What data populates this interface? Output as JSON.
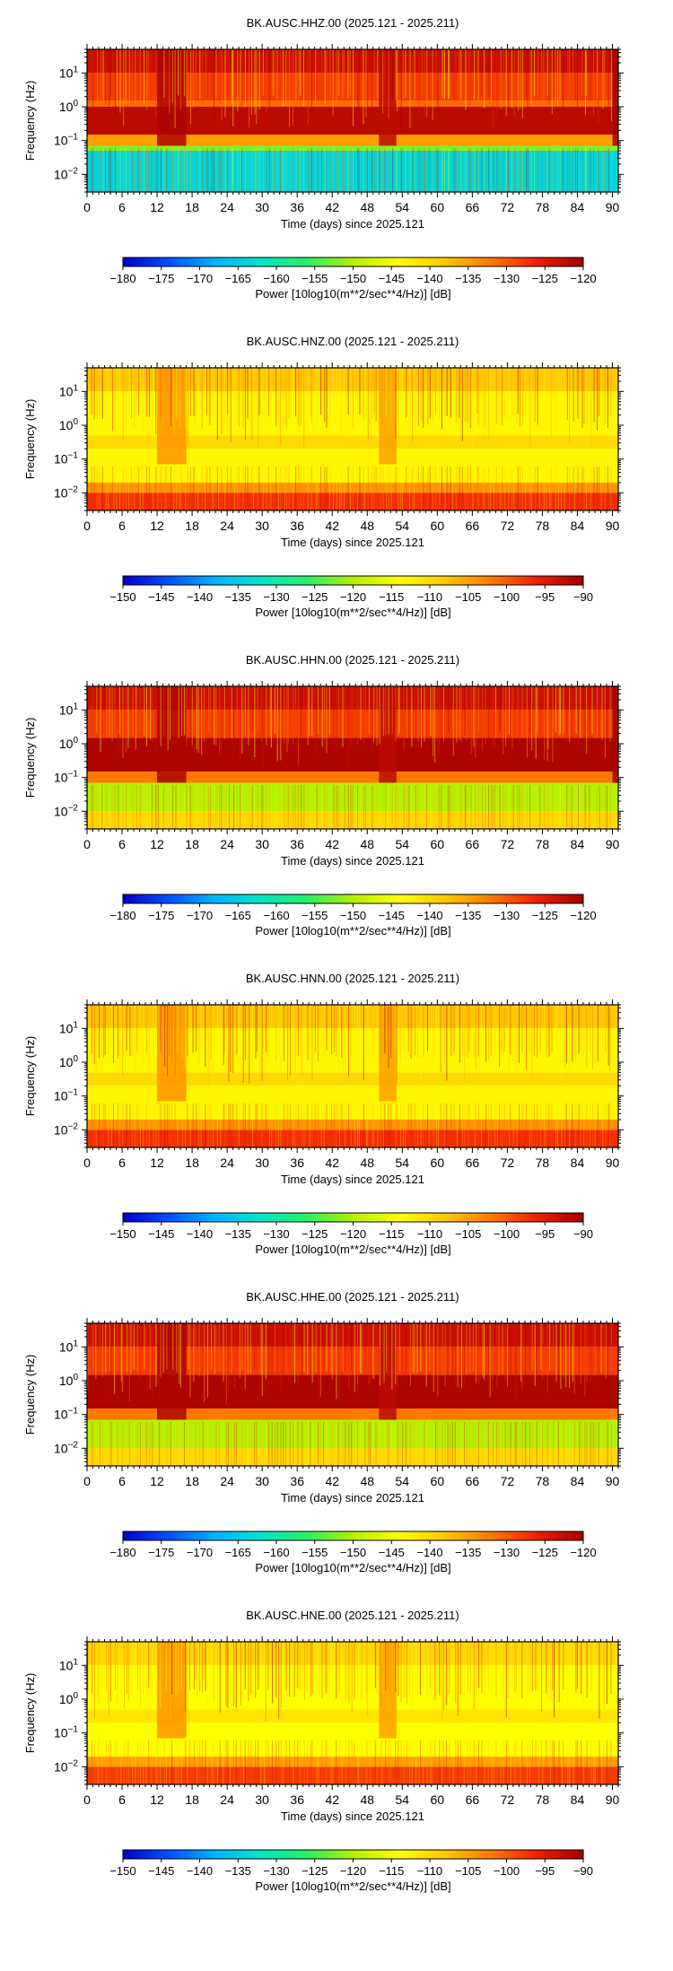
{
  "chart_data": [
    {
      "type": "heatmap",
      "title": "BK.AUSC.HHZ.00 (2025.121 - 2025.211)",
      "xlabel": "Time (days) since 2025.121",
      "ylabel": "Frequency (Hz)",
      "xlim": [
        0,
        91
      ],
      "ylim": [
        0.003,
        50
      ],
      "yscale": "log",
      "x_ticks": [
        "0",
        "6",
        "12",
        "18",
        "24",
        "30",
        "36",
        "42",
        "48",
        "54",
        "60",
        "66",
        "72",
        "78",
        "84",
        "90"
      ],
      "y_ticks": [
        "10^-2",
        "10^-1",
        "10^0",
        "10^1"
      ],
      "colorbar": {
        "label": "Power [10log10(m**2/sec**4/Hz)] [dB]",
        "range": [
          -180,
          -120
        ],
        "ticks": [
          "−180",
          "−175",
          "−170",
          "−165",
          "−160",
          "−155",
          "−150",
          "−145",
          "−140",
          "−135",
          "−130",
          "−125",
          "−120"
        ]
      },
      "colormap": [
        "#0000c8",
        "#0050ff",
        "#00b4ff",
        "#00e6c8",
        "#28f064",
        "#b4f000",
        "#ffff00",
        "#ffc800",
        "#ff7800",
        "#f01e00",
        "#a00000"
      ],
      "rows": [
        {
          "freq_hz": [
            10,
            50
          ],
          "power_db": -123
        },
        {
          "freq_hz": [
            1.5,
            10
          ],
          "power_db": -128
        },
        {
          "freq_hz": [
            1,
            1.5
          ],
          "power_db": -131
        },
        {
          "freq_hz": [
            0.15,
            1
          ],
          "power_db": -122
        },
        {
          "freq_hz": [
            0.07,
            0.15
          ],
          "power_db": -135
        },
        {
          "freq_hz": [
            0.05,
            0.07
          ],
          "power_db": -152
        },
        {
          "freq_hz": [
            0.003,
            0.05
          ],
          "power_db": -164
        }
      ],
      "bands": [
        {
          "days": [
            12,
            17
          ],
          "power_db": -121
        },
        {
          "days": [
            50,
            53
          ],
          "power_db": -122
        },
        {
          "days": [
            90,
            91
          ],
          "power_db": -120
        }
      ]
    },
    {
      "type": "heatmap",
      "title": "BK.AUSC.HNZ.00 (2025.121 - 2025.211)",
      "xlabel": "Time (days) since 2025.121",
      "ylabel": "Frequency (Hz)",
      "xlim": [
        0,
        91
      ],
      "ylim": [
        0.003,
        50
      ],
      "yscale": "log",
      "x_ticks": [
        "0",
        "6",
        "12",
        "18",
        "24",
        "30",
        "36",
        "42",
        "48",
        "54",
        "60",
        "66",
        "72",
        "78",
        "84",
        "90"
      ],
      "y_ticks": [
        "10^-2",
        "10^-1",
        "10^0",
        "10^1"
      ],
      "colorbar": {
        "label": "Power [10log10(m**2/sec**4/Hz)] [dB]",
        "range": [
          -150,
          -90
        ],
        "ticks": [
          "−150",
          "−145",
          "−140",
          "−135",
          "−130",
          "−125",
          "−120",
          "−115",
          "−110",
          "−105",
          "−100",
          "−95",
          "−90"
        ]
      },
      "colormap": [
        "#0000c8",
        "#0050ff",
        "#00b4ff",
        "#00e6c8",
        "#28f064",
        "#b4f000",
        "#ffff00",
        "#ffc800",
        "#ff7800",
        "#f01e00",
        "#a00000"
      ],
      "rows": [
        {
          "freq_hz": [
            10,
            50
          ],
          "power_db": -108
        },
        {
          "freq_hz": [
            0.5,
            10
          ],
          "power_db": -113
        },
        {
          "freq_hz": [
            0.2,
            0.5
          ],
          "power_db": -110
        },
        {
          "freq_hz": [
            0.02,
            0.2
          ],
          "power_db": -113
        },
        {
          "freq_hz": [
            0.01,
            0.02
          ],
          "power_db": -104
        },
        {
          "freq_hz": [
            0.003,
            0.01
          ],
          "power_db": -97
        }
      ],
      "bands": [
        {
          "days": [
            12,
            17
          ],
          "power_db": -104
        },
        {
          "days": [
            50,
            53
          ],
          "power_db": -105
        }
      ]
    },
    {
      "type": "heatmap",
      "title": "BK.AUSC.HHN.00 (2025.121 - 2025.211)",
      "xlabel": "Time (days) since 2025.121",
      "ylabel": "Frequency (Hz)",
      "xlim": [
        0,
        91
      ],
      "ylim": [
        0.003,
        50
      ],
      "yscale": "log",
      "x_ticks": [
        "0",
        "6",
        "12",
        "18",
        "24",
        "30",
        "36",
        "42",
        "48",
        "54",
        "60",
        "66",
        "72",
        "78",
        "84",
        "90"
      ],
      "y_ticks": [
        "10^-2",
        "10^-1",
        "10^0",
        "10^1"
      ],
      "colorbar": {
        "label": "Power [10log10(m**2/sec**4/Hz)] [dB]",
        "range": [
          -180,
          -120
        ],
        "ticks": [
          "−180",
          "−175",
          "−170",
          "−165",
          "−160",
          "−155",
          "−150",
          "−145",
          "−140",
          "−135",
          "−130",
          "−125",
          "−120"
        ]
      },
      "colormap": [
        "#0000c8",
        "#0050ff",
        "#00b4ff",
        "#00e6c8",
        "#28f064",
        "#b4f000",
        "#ffff00",
        "#ffc800",
        "#ff7800",
        "#f01e00",
        "#a00000"
      ],
      "rows": [
        {
          "freq_hz": [
            10,
            50
          ],
          "power_db": -123
        },
        {
          "freq_hz": [
            1.5,
            10
          ],
          "power_db": -128
        },
        {
          "freq_hz": [
            0.15,
            1.5
          ],
          "power_db": -121
        },
        {
          "freq_hz": [
            0.07,
            0.15
          ],
          "power_db": -132
        },
        {
          "freq_hz": [
            0.01,
            0.07
          ],
          "power_db": -150
        },
        {
          "freq_hz": [
            0.003,
            0.01
          ],
          "power_db": -140
        }
      ],
      "bands": [
        {
          "days": [
            12,
            17
          ],
          "power_db": -121
        },
        {
          "days": [
            50,
            53
          ],
          "power_db": -122
        },
        {
          "days": [
            90,
            91
          ],
          "power_db": -120
        }
      ]
    },
    {
      "type": "heatmap",
      "title": "BK.AUSC.HNN.00 (2025.121 - 2025.211)",
      "xlabel": "Time (days) since 2025.121",
      "ylabel": "Frequency (Hz)",
      "xlim": [
        0,
        91
      ],
      "ylim": [
        0.003,
        50
      ],
      "yscale": "log",
      "x_ticks": [
        "0",
        "6",
        "12",
        "18",
        "24",
        "30",
        "36",
        "42",
        "48",
        "54",
        "60",
        "66",
        "72",
        "78",
        "84",
        "90"
      ],
      "y_ticks": [
        "10^-2",
        "10^-1",
        "10^0",
        "10^1"
      ],
      "colorbar": {
        "label": "Power [10log10(m**2/sec**4/Hz)] [dB]",
        "range": [
          -150,
          -90
        ],
        "ticks": [
          "−150",
          "−145",
          "−140",
          "−135",
          "−130",
          "−125",
          "−120",
          "−115",
          "−110",
          "−105",
          "−100",
          "−95",
          "−90"
        ]
      },
      "colormap": [
        "#0000c8",
        "#0050ff",
        "#00b4ff",
        "#00e6c8",
        "#28f064",
        "#b4f000",
        "#ffff00",
        "#ffc800",
        "#ff7800",
        "#f01e00",
        "#a00000"
      ],
      "rows": [
        {
          "freq_hz": [
            10,
            50
          ],
          "power_db": -108
        },
        {
          "freq_hz": [
            0.5,
            10
          ],
          "power_db": -113
        },
        {
          "freq_hz": [
            0.2,
            0.5
          ],
          "power_db": -110
        },
        {
          "freq_hz": [
            0.02,
            0.2
          ],
          "power_db": -113
        },
        {
          "freq_hz": [
            0.01,
            0.02
          ],
          "power_db": -104
        },
        {
          "freq_hz": [
            0.003,
            0.01
          ],
          "power_db": -97
        }
      ],
      "bands": [
        {
          "days": [
            12,
            17
          ],
          "power_db": -104
        },
        {
          "days": [
            50,
            53
          ],
          "power_db": -105
        }
      ]
    },
    {
      "type": "heatmap",
      "title": "BK.AUSC.HHE.00 (2025.121 - 2025.211)",
      "xlabel": "Time (days) since 2025.121",
      "ylabel": "Frequency (Hz)",
      "xlim": [
        0,
        91
      ],
      "ylim": [
        0.003,
        50
      ],
      "yscale": "log",
      "x_ticks": [
        "0",
        "6",
        "12",
        "18",
        "24",
        "30",
        "36",
        "42",
        "48",
        "54",
        "60",
        "66",
        "72",
        "78",
        "84",
        "90"
      ],
      "y_ticks": [
        "10^-2",
        "10^-1",
        "10^0",
        "10^1"
      ],
      "colorbar": {
        "label": "Power [10log10(m**2/sec**4/Hz)] [dB]",
        "range": [
          -180,
          -120
        ],
        "ticks": [
          "−180",
          "−175",
          "−170",
          "−165",
          "−160",
          "−155",
          "−150",
          "−145",
          "−140",
          "−135",
          "−130",
          "−125",
          "−120"
        ]
      },
      "colormap": [
        "#0000c8",
        "#0050ff",
        "#00b4ff",
        "#00e6c8",
        "#28f064",
        "#b4f000",
        "#ffff00",
        "#ffc800",
        "#ff7800",
        "#f01e00",
        "#a00000"
      ],
      "rows": [
        {
          "freq_hz": [
            10,
            50
          ],
          "power_db": -123
        },
        {
          "freq_hz": [
            1.5,
            10
          ],
          "power_db": -128
        },
        {
          "freq_hz": [
            0.15,
            1.5
          ],
          "power_db": -121
        },
        {
          "freq_hz": [
            0.07,
            0.15
          ],
          "power_db": -132
        },
        {
          "freq_hz": [
            0.01,
            0.07
          ],
          "power_db": -150
        },
        {
          "freq_hz": [
            0.003,
            0.01
          ],
          "power_db": -140
        }
      ],
      "bands": [
        {
          "days": [
            12,
            17
          ],
          "power_db": -121
        },
        {
          "days": [
            50,
            53
          ],
          "power_db": -122
        }
      ]
    },
    {
      "type": "heatmap",
      "title": "BK.AUSC.HNE.00 (2025.121 - 2025.211)",
      "xlabel": "Time (days) since 2025.121",
      "ylabel": "Frequency (Hz)",
      "xlim": [
        0,
        91
      ],
      "ylim": [
        0.003,
        50
      ],
      "yscale": "log",
      "x_ticks": [
        "0",
        "6",
        "12",
        "18",
        "24",
        "30",
        "36",
        "42",
        "48",
        "54",
        "60",
        "66",
        "72",
        "78",
        "84",
        "90"
      ],
      "y_ticks": [
        "10^-2",
        "10^-1",
        "10^0",
        "10^1"
      ],
      "colorbar": {
        "label": "Power [10log10(m**2/sec**4/Hz)] [dB]",
        "range": [
          -150,
          -90
        ],
        "ticks": [
          "−150",
          "−145",
          "−140",
          "−135",
          "−130",
          "−125",
          "−120",
          "−115",
          "−110",
          "−105",
          "−100",
          "−95",
          "−90"
        ]
      },
      "colormap": [
        "#0000c8",
        "#0050ff",
        "#00b4ff",
        "#00e6c8",
        "#28f064",
        "#b4f000",
        "#ffff00",
        "#ffc800",
        "#ff7800",
        "#f01e00",
        "#a00000"
      ],
      "rows": [
        {
          "freq_hz": [
            10,
            50
          ],
          "power_db": -110
        },
        {
          "freq_hz": [
            0.5,
            10
          ],
          "power_db": -114
        },
        {
          "freq_hz": [
            0.2,
            0.5
          ],
          "power_db": -111
        },
        {
          "freq_hz": [
            0.02,
            0.2
          ],
          "power_db": -114
        },
        {
          "freq_hz": [
            0.01,
            0.02
          ],
          "power_db": -105
        },
        {
          "freq_hz": [
            0.003,
            0.01
          ],
          "power_db": -98
        }
      ],
      "bands": [
        {
          "days": [
            12,
            17
          ],
          "power_db": -104
        },
        {
          "days": [
            50,
            53
          ],
          "power_db": -105
        }
      ]
    }
  ]
}
